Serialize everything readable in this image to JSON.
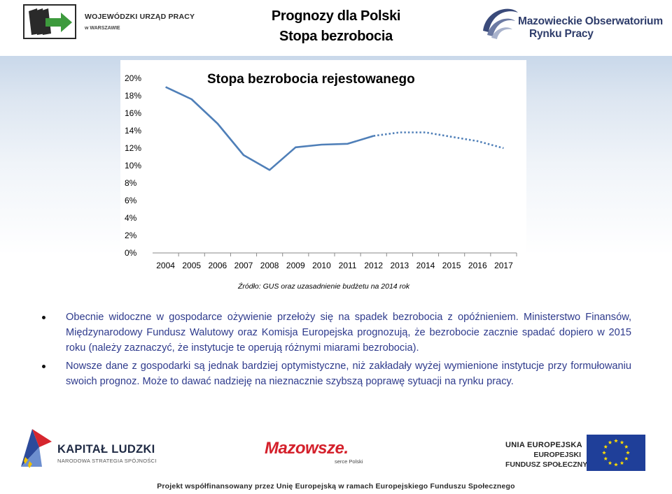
{
  "header": {
    "title_line1": "Prognozy dla Polski",
    "title_line2": "Stopa bezrobocia",
    "left_logo_name": "WOJEWÓDZKI URZĄD PRACY",
    "left_logo_city": "w WARSZAWIE",
    "right_logo_line1": "Mazowieckie Obserwatorium",
    "right_logo_line2": "Rynku Pracy"
  },
  "chart_data": {
    "type": "line",
    "title": "Stopa bezrobocia rejestowanego",
    "categories": [
      "2004",
      "2005",
      "2006",
      "2007",
      "2008",
      "2009",
      "2010",
      "2011",
      "2012",
      "2013",
      "2014",
      "2015",
      "2016",
      "2017"
    ],
    "y_tick_labels": [
      "0%",
      "2%",
      "4%",
      "6%",
      "8%",
      "10%",
      "12%",
      "14%",
      "16%",
      "18%",
      "20%"
    ],
    "ylim": [
      0,
      20
    ],
    "series": [
      {
        "style": "solid",
        "values": [
          19.0,
          17.6,
          14.8,
          11.2,
          9.5,
          12.1,
          12.4,
          12.5,
          13.4,
          null,
          null,
          null,
          null,
          null
        ]
      },
      {
        "style": "dotted",
        "values": [
          null,
          null,
          null,
          null,
          null,
          null,
          null,
          null,
          13.4,
          13.8,
          13.8,
          13.3,
          12.8,
          12.0
        ]
      }
    ],
    "line_color": "#4f7fb8",
    "grid": false
  },
  "source": "Źródło: GUS oraz uzasadnienie budżetu na 2014 rok",
  "bullets": [
    "Obecnie widoczne w gospodarce ożywienie przełoży się na spadek bezrobocia z opóźnieniem. Ministerstwo Finansów, Międzynarodowy Fundusz Walutowy oraz Komisja Europejska prognozują, że bezrobocie zacznie spadać dopiero w 2015 roku (należy zaznaczyć, że instytucje te operują różnymi miarami bezrobocia).",
    "Nowsze dane z gospodarki są jednak bardziej optymistyczne, niż zakładały wyżej wymienione instytucje przy formułowaniu swoich prognoz. Może to dawać nadzieję na nieznacznie szybszą poprawę sytuacji na rynku pracy."
  ],
  "footer": {
    "kl_title": "KAPITAŁ LUDZKI",
    "kl_subtitle": "NARODOWA STRATEGIA SPÓJNOŚCI",
    "mazowsze": "Mazowsze.",
    "mazowsze_sub": "serce Polski",
    "ue_line1": "UNIA EUROPEJSKA",
    "ue_line2": "EUROPEJSKI",
    "ue_line3": "FUNDUSZ SPOŁECZNY",
    "note": "Projekt współfinansowany przez Unię Europejską w ramach Europejskiego Funduszu Społecznego"
  }
}
